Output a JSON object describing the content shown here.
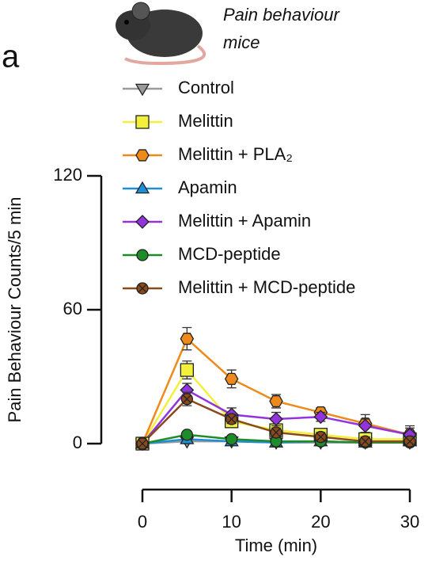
{
  "chart_data": {
    "type": "line",
    "panel_label": "a",
    "annotation": [
      "Pain behaviour",
      "mice"
    ],
    "x_label": "Time (min)",
    "y_label": "Pain Behaviour Counts/5 min",
    "x": [
      0,
      5,
      10,
      15,
      20,
      25,
      30
    ],
    "xlim": [
      0,
      30
    ],
    "xticks": [
      0,
      10,
      20,
      30
    ],
    "ylim": [
      0,
      120
    ],
    "yticks": [
      0,
      60,
      120
    ],
    "series": [
      {
        "name": "Control",
        "color": "#9a9a9a",
        "marker": "triangle-down",
        "values": [
          0,
          1,
          1,
          0.5,
          0.5,
          0.5,
          0.5
        ],
        "errors": [
          0,
          1,
          1,
          1,
          1,
          1,
          1
        ]
      },
      {
        "name": "Melittin",
        "color": "#f2f03a",
        "marker": "square",
        "values": [
          0,
          33,
          10,
          6,
          4,
          2,
          2
        ],
        "errors": [
          0,
          4,
          2,
          2,
          2,
          2,
          2
        ]
      },
      {
        "name": "Melittin + PLA₂",
        "color": "#ee8a1c",
        "marker": "hexagon",
        "values": [
          0,
          47,
          29,
          19,
          14,
          9,
          4
        ],
        "errors": [
          0,
          5,
          4,
          3,
          2,
          4,
          4
        ]
      },
      {
        "name": "Apamin",
        "color": "#1e8fd6",
        "marker": "triangle-up",
        "values": [
          0,
          2,
          1,
          0.5,
          1,
          0.5,
          1
        ],
        "errors": [
          0,
          1,
          1,
          1,
          1,
          1,
          1
        ]
      },
      {
        "name": "Melittin + Apamin",
        "color": "#9233dd",
        "marker": "diamond",
        "values": [
          0,
          24,
          13,
          11,
          12,
          8,
          4
        ],
        "errors": [
          0,
          3,
          3,
          3,
          2,
          3,
          3
        ]
      },
      {
        "name": "MCD-peptide",
        "color": "#1f8c2a",
        "marker": "circle",
        "values": [
          0,
          4,
          2,
          1,
          1,
          0.5,
          0.5
        ],
        "errors": [
          0,
          1,
          1,
          1,
          1,
          1,
          1
        ]
      },
      {
        "name": "Melittin + MCD-peptide",
        "color": "#8a4a1c",
        "marker": "circle-x",
        "values": [
          0,
          20,
          11,
          5,
          3,
          1,
          1
        ],
        "errors": [
          0,
          3,
          2,
          2,
          2,
          2,
          2
        ]
      }
    ]
  }
}
